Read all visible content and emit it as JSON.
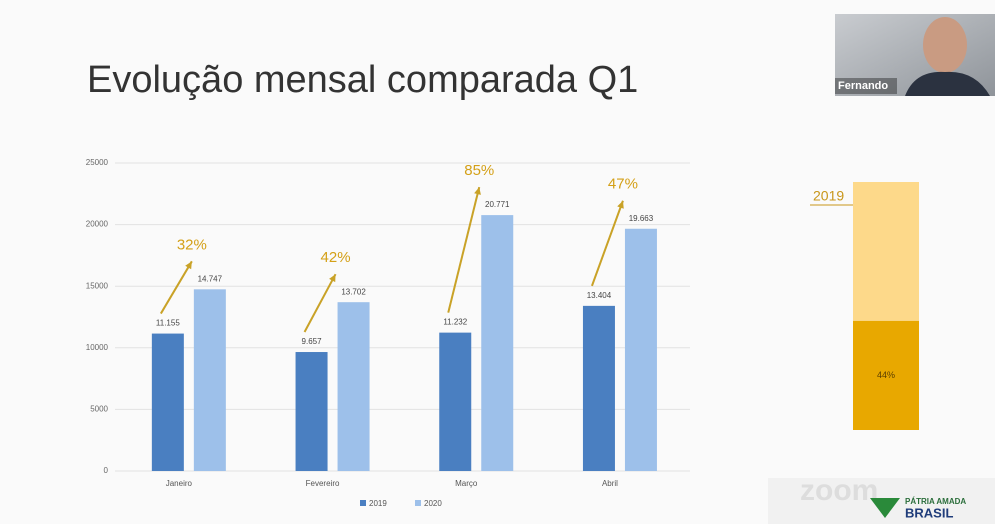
{
  "chart_data": {
    "type": "bar",
    "title": "Evolução mensal comparada Q1",
    "categories": [
      "Janeiro",
      "Fevereiro",
      "Março",
      "Abril"
    ],
    "series": [
      {
        "name": "2019",
        "color": "#4a7fc1",
        "values": [
          11155,
          9657,
          11232,
          13404
        ],
        "value_labels": [
          "11.155",
          "9.657",
          "11.232",
          "13.404"
        ]
      },
      {
        "name": "2020",
        "color": "#9dc0ea",
        "values": [
          14747,
          13702,
          20771,
          19663
        ],
        "value_labels": [
          "14.747",
          "13.702",
          "20.771",
          "19.663"
        ]
      }
    ],
    "annotations": [
      "32%",
      "42%",
      "85%",
      "47%"
    ],
    "ylim": [
      0,
      25000
    ],
    "yticks": [
      0,
      5000,
      10000,
      15000,
      20000,
      25000
    ],
    "grid": true,
    "legend": "bottom"
  },
  "side_panel": {
    "label": "2019",
    "value": 44,
    "value_label": "44%",
    "ylim": [
      0,
      100
    ]
  },
  "video": {
    "name": "Fernando"
  },
  "footer": {
    "watermark": "zoom",
    "logo_top": "PÁTRIA AMADA",
    "logo": "BRASIL"
  }
}
